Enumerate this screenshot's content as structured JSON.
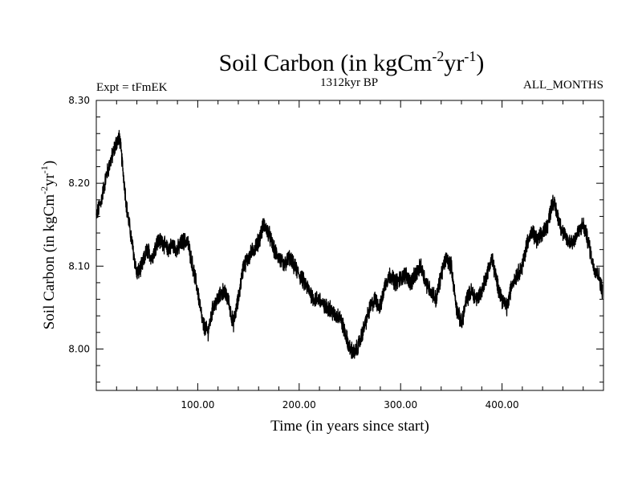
{
  "chart_data": {
    "type": "line",
    "title_main": "Soil Carbon (in kgCm",
    "title_exp1": "-2",
    "title_mid": "yr",
    "title_exp2": "-1",
    "title_end": ")",
    "subtitle_left": "Expt = tFmEK",
    "subtitle_center": "1312kyr BP",
    "subtitle_right": "ALL_MONTHS",
    "xlabel": "Time (in years since start)",
    "ylabel_main": "Soil Carbon (in kgCm",
    "ylabel_exp1": "-2",
    "ylabel_mid": "yr",
    "ylabel_exp2": "-1",
    "ylabel_end": ")",
    "xlim": [
      0,
      500
    ],
    "ylim": [
      7.95,
      8.3
    ],
    "x_ticks": [
      100,
      200,
      300,
      400
    ],
    "x_tick_labels": [
      "100.00",
      "200.00",
      "300.00",
      "400.00"
    ],
    "y_ticks": [
      8.0,
      8.1,
      8.2,
      8.3
    ],
    "y_tick_labels": [
      "8.00",
      "8.10",
      "8.20",
      "8.30"
    ],
    "series": [
      {
        "color": "#000000",
        "x": [
          0,
          5,
          10,
          15,
          20,
          23,
          26,
          30,
          35,
          40,
          45,
          50,
          55,
          60,
          65,
          70,
          75,
          80,
          85,
          90,
          95,
          100,
          105,
          110,
          115,
          120,
          125,
          130,
          135,
          140,
          145,
          150,
          155,
          160,
          165,
          170,
          175,
          180,
          185,
          190,
          195,
          200,
          205,
          210,
          215,
          220,
          225,
          230,
          235,
          240,
          245,
          250,
          255,
          260,
          265,
          270,
          275,
          280,
          285,
          290,
          295,
          300,
          305,
          310,
          315,
          320,
          325,
          330,
          335,
          340,
          345,
          350,
          355,
          360,
          365,
          370,
          375,
          380,
          385,
          390,
          395,
          400,
          405,
          410,
          415,
          420,
          425,
          430,
          435,
          440,
          445,
          450,
          455,
          460,
          465,
          470,
          475,
          480,
          485,
          490,
          495,
          499
        ],
        "y": [
          8.16,
          8.18,
          8.21,
          8.23,
          8.25,
          8.255,
          8.22,
          8.17,
          8.13,
          8.09,
          8.1,
          8.12,
          8.11,
          8.13,
          8.13,
          8.12,
          8.125,
          8.12,
          8.13,
          8.13,
          8.1,
          8.07,
          8.03,
          8.02,
          8.05,
          8.06,
          8.07,
          8.06,
          8.03,
          8.06,
          8.1,
          8.11,
          8.12,
          8.13,
          8.15,
          8.14,
          8.12,
          8.11,
          8.1,
          8.11,
          8.1,
          8.09,
          8.08,
          8.07,
          8.06,
          8.06,
          8.05,
          8.05,
          8.04,
          8.04,
          8.02,
          8.0,
          7.995,
          8.01,
          8.03,
          8.05,
          8.06,
          8.05,
          8.08,
          8.09,
          8.08,
          8.085,
          8.09,
          8.08,
          8.09,
          8.1,
          8.08,
          8.07,
          8.06,
          8.09,
          8.11,
          8.1,
          8.05,
          8.03,
          8.06,
          8.07,
          8.06,
          8.07,
          8.09,
          8.11,
          8.08,
          8.06,
          8.05,
          8.08,
          8.09,
          8.1,
          8.13,
          8.14,
          8.13,
          8.14,
          8.15,
          8.18,
          8.16,
          8.14,
          8.13,
          8.13,
          8.14,
          8.15,
          8.13,
          8.1,
          8.09,
          8.07
        ]
      }
    ]
  }
}
